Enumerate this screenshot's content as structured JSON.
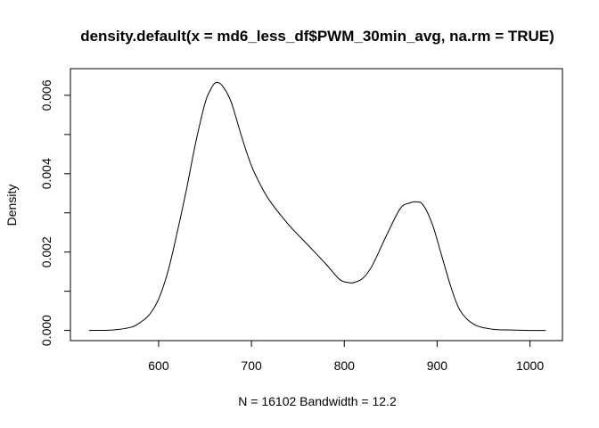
{
  "chart_data": {
    "type": "line",
    "title": "density.default(x = md6_less_df$PWM_30min_avg, na.rm = TRUE)",
    "xlabel": "N = 16102   Bandwidth = 12.2",
    "ylabel": "Density",
    "xlim": [
      505,
      1035
    ],
    "ylim": [
      -0.00026,
      0.00668
    ],
    "x_ticks": [
      600,
      700,
      800,
      900,
      1000
    ],
    "x_tick_labels": [
      "600",
      "700",
      "800",
      "900",
      "1000"
    ],
    "y_ticks": [
      0.0,
      0.001,
      0.002,
      0.003,
      0.004,
      0.005,
      0.006
    ],
    "y_tick_labels": [
      "0.000",
      "",
      "0.002",
      "",
      "0.004",
      "",
      "0.006"
    ],
    "grid": false,
    "series": [
      {
        "x": [
          525,
          550,
          570,
          580,
          590,
          600,
          610,
          620,
          630,
          640,
          650,
          655,
          660,
          665,
          670,
          675,
          680,
          690,
          700,
          710,
          720,
          740,
          760,
          780,
          795,
          805,
          810,
          820,
          830,
          845,
          860,
          870,
          878,
          885,
          895,
          905,
          915,
          925,
          940,
          960,
          980,
          1000,
          1017
        ],
        "y": [
          0.0,
          1e-05,
          8e-05,
          0.0002,
          0.0004,
          0.0008,
          0.0015,
          0.0025,
          0.0036,
          0.0048,
          0.0058,
          0.0061,
          0.0063,
          0.00632,
          0.0062,
          0.006,
          0.0057,
          0.0049,
          0.0042,
          0.0037,
          0.0033,
          0.0027,
          0.0022,
          0.0017,
          0.0013,
          0.00122,
          0.00122,
          0.00133,
          0.00165,
          0.0024,
          0.0031,
          0.00325,
          0.00328,
          0.0032,
          0.0027,
          0.0019,
          0.0011,
          0.0005,
          0.00015,
          3e-05,
          1e-05,
          0.0,
          0.0
        ]
      }
    ]
  }
}
